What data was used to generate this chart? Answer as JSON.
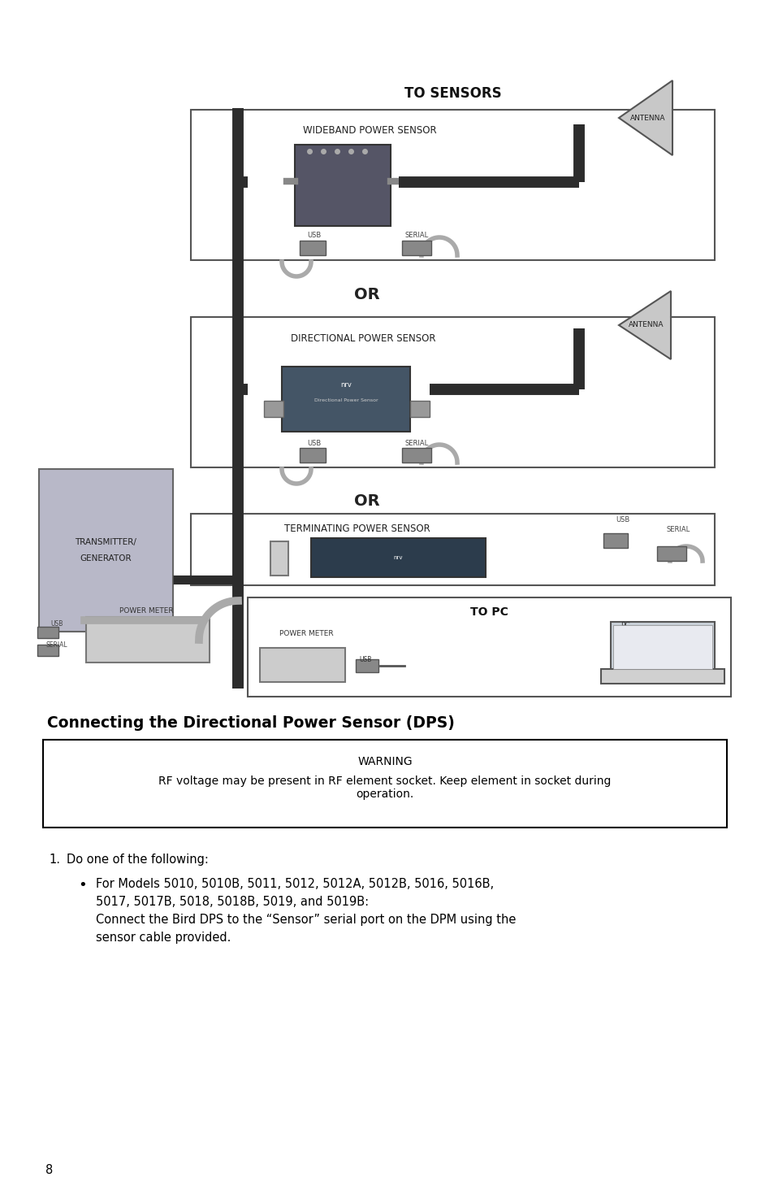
{
  "page_bg": "#ffffff",
  "page_number": "8",
  "section_heading": "Connecting the Directional Power Sensor (DPS)",
  "warning_title": "WARNING",
  "warning_text": "RF voltage may be present in RF element socket. Keep element in socket during\noperation.",
  "list_intro": "Do one of the following:",
  "bullet_model_line1": "For Models 5010, 5010B, 5011, 5012, 5012A, 5012B, 5016, 5016B,",
  "bullet_model_line2": "5017, 5017B, 5018, 5018B, 5019, and 5019B:",
  "bullet_body_line1": "Connect the Bird DPS to the “Sensor” serial port on the DPM using the",
  "bullet_body_line2": "sensor cable provided.",
  "colors": {
    "page_bg": "#ffffff",
    "box_border": "#555555",
    "thick_line": "#2c2c2c",
    "transmitter_fill": "#b8b8c8",
    "antenna_fill": "#c8c8c8",
    "sensor_fill_1": "#555566",
    "sensor_fill_2": "#445566",
    "sensor_fill_3": "#2c3c4c",
    "connector_fill": "#888888",
    "cable_color": "#aaaaaa",
    "text_dark": "#111111",
    "text_med": "#222222",
    "text_gray": "#444444",
    "warning_border": "#000000",
    "pm_fill": "#cccccc"
  }
}
